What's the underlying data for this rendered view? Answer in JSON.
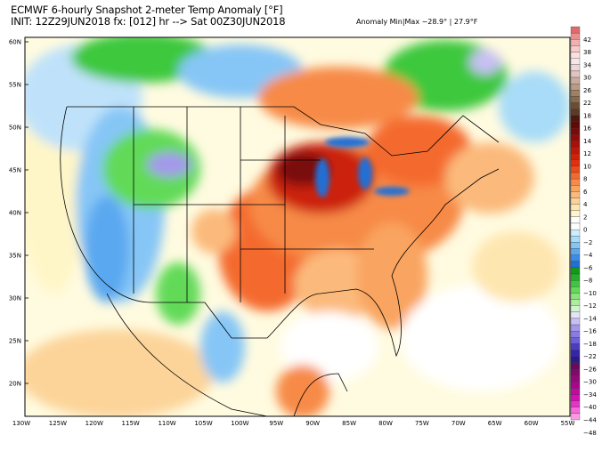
{
  "header": {
    "title": "ECMWF 6-hourly Snapshot 2-meter Temp Anomaly [°F]",
    "init_line": "INIT: 12Z29JUN2018 fx: [012] hr --> Sat 00Z30JUN2018",
    "minmax": "Anomaly Min|Max −28.9° | 27.9°F"
  },
  "map": {
    "lat_labels": [
      "60N",
      "55N",
      "50N",
      "45N",
      "40N",
      "35N",
      "30N",
      "25N",
      "20N"
    ],
    "lon_labels": [
      "130W",
      "125W",
      "120W",
      "115W",
      "110W",
      "105W",
      "100W",
      "95W",
      "90W",
      "85W",
      "80W",
      "75W",
      "70W",
      "65W",
      "60W",
      "55W"
    ]
  },
  "colorbar": {
    "labels": [
      "42",
      "38",
      "34",
      "30",
      "26",
      "22",
      "18",
      "16",
      "14",
      "12",
      "10",
      "8",
      "6",
      "4",
      "2",
      "0",
      "−2",
      "−4",
      "−6",
      "−8",
      "−10",
      "−12",
      "−14",
      "−16",
      "−18",
      "−22",
      "−26",
      "−30",
      "−34",
      "−40",
      "−44",
      "−48"
    ],
    "colors": [
      "#e06a6a",
      "#e89090",
      "#f2b0b0",
      "#f8caca",
      "#fbe0e0",
      "#f6e6e6",
      "#eed6d6",
      "#e0c4c0",
      "#c8aca0",
      "#b89c84",
      "#a08060",
      "#8a6a4c",
      "#6e4c34",
      "#5a3a28",
      "#4a1a10",
      "#600a08",
      "#7a0a0a",
      "#900c0c",
      "#a81008",
      "#bc1a08",
      "#cc2408",
      "#e03010",
      "#ee4a1a",
      "#f46a2e",
      "#f78a46",
      "#f9a460",
      "#fbba7c",
      "#fdd296",
      "#fee6b0",
      "#fff4cc",
      "#ffffff",
      "#ffffff",
      "#cdeefc",
      "#a8dcf8",
      "#86c6f6",
      "#5aa8f0",
      "#3a8ce6",
      "#2070d4",
      "#129a18",
      "#20b02a",
      "#3cc83c",
      "#62da58",
      "#8ae47a",
      "#aeecA0",
      "#d2f4cc",
      "#e4e4f8",
      "#c8c0f4",
      "#a498ec",
      "#8a7ce4",
      "#7060d8",
      "#4a3cc4",
      "#3426a8",
      "#2a1a90",
      "#6a0a5a",
      "#800a6c",
      "#94087c",
      "#a8068c",
      "#c00aa0",
      "#d810b4",
      "#ec30cc",
      "#f66ad8",
      "#fa9ae4"
    ]
  }
}
